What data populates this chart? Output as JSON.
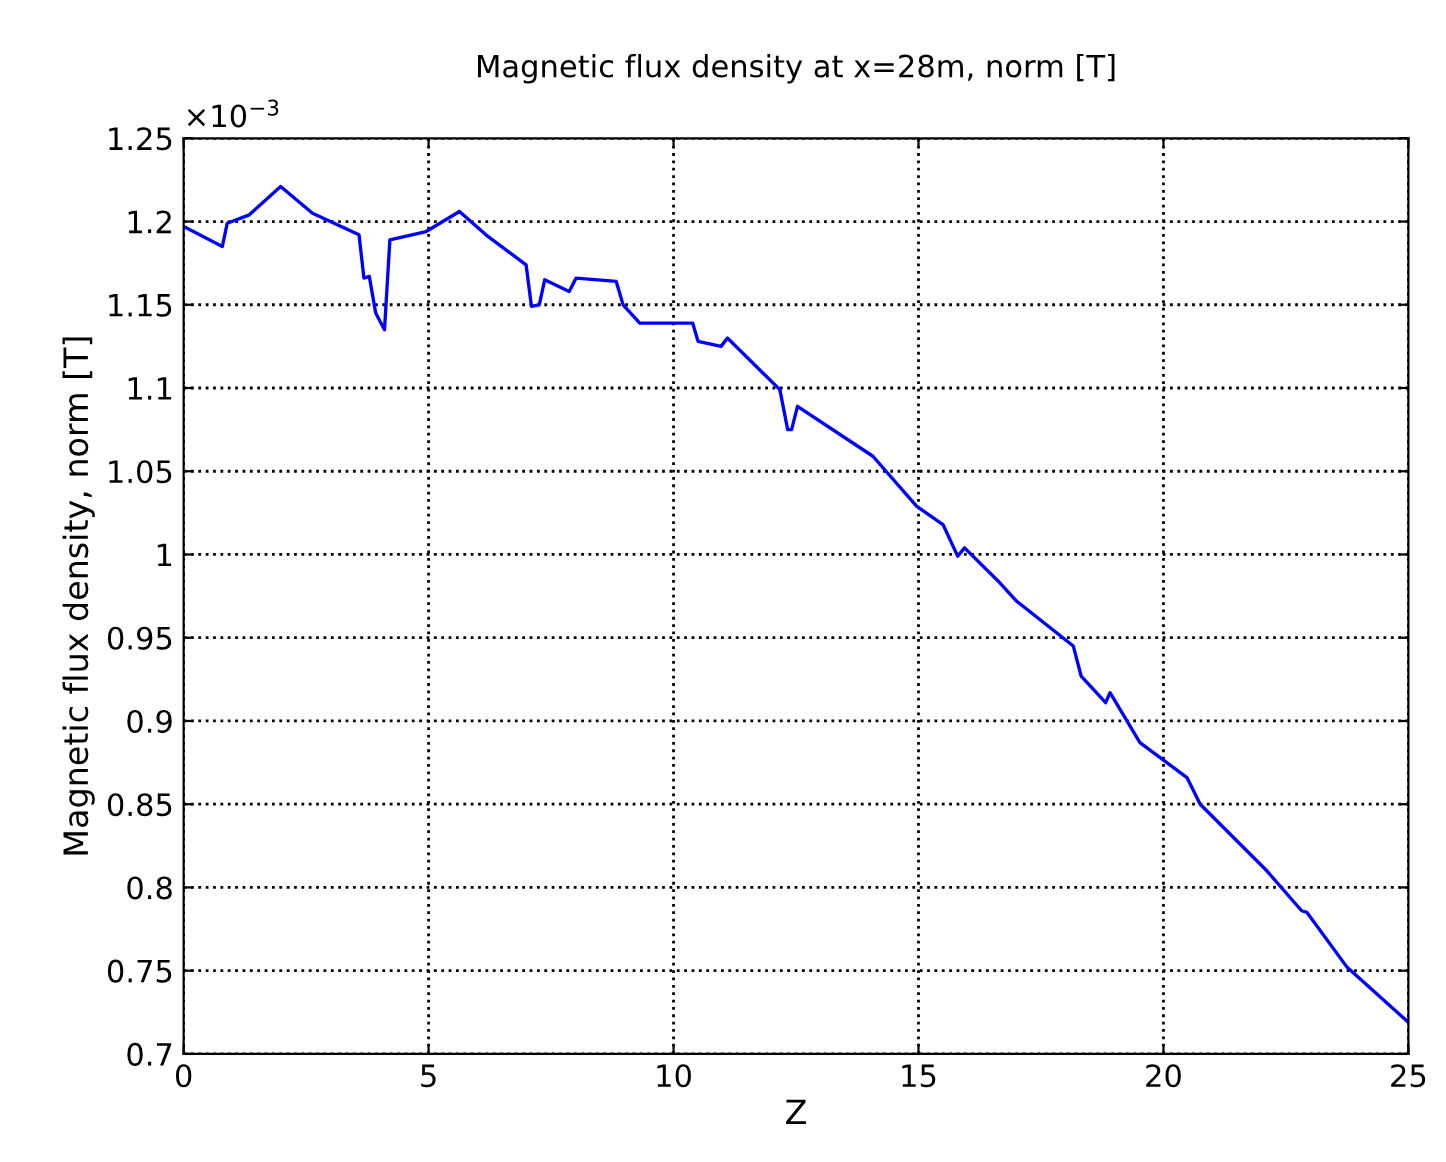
{
  "chart_data": {
    "type": "line",
    "title": "Magnetic flux density at x=28m, norm [T]",
    "xlabel": "Z",
    "ylabel": "Magnetic flux density, norm [T]",
    "annotations": [
      "×10$^{−3}$"
    ],
    "series": [
      {
        "color": "#0000ff",
        "x": [
          0,
          0.79,
          0.89,
          1.34,
          1.98,
          2.63,
          3.58,
          3.68,
          3.79,
          3.92,
          4.1,
          4.21,
          4.95,
          5.63,
          6.17,
          6.99,
          7.1,
          7.26,
          7.37,
          7.87,
          8.01,
          8.83,
          8.97,
          9.31,
          10.39,
          10.5,
          10.97,
          11.1,
          12.17,
          12.33,
          12.41,
          12.53,
          14.07,
          14.96,
          15.5,
          15.8,
          15.94,
          16.66,
          17.0,
          18.16,
          18.32,
          18.82,
          18.91,
          19.52,
          20.48,
          20.75,
          22.11,
          22.82,
          22.93,
          23.75,
          25
        ],
        "values": [
          1.197,
          1.185,
          1.199,
          1.204,
          1.221,
          1.205,
          1.192,
          1.166,
          1.167,
          1.145,
          1.135,
          1.189,
          1.194,
          1.206,
          1.192,
          1.174,
          1.149,
          1.15,
          1.165,
          1.158,
          1.166,
          1.164,
          1.15,
          1.139,
          1.139,
          1.128,
          1.125,
          1.13,
          1.099,
          1.075,
          1.075,
          1.089,
          1.059,
          1.029,
          1.018,
          0.999,
          1.004,
          0.983,
          0.972,
          0.945,
          0.927,
          0.911,
          0.917,
          0.887,
          0.866,
          0.85,
          0.81,
          0.786,
          0.785,
          0.752,
          0.719
        ]
      }
    ],
    "xlim": [
      0,
      25
    ],
    "xticks": [
      0,
      5,
      10,
      15,
      20,
      25
    ],
    "ylim": [
      0.7,
      1.25
    ],
    "yticks": [
      0.7,
      0.75,
      0.8,
      0.85,
      0.9,
      0.95,
      1,
      1.05,
      1.1,
      1.15,
      1.2,
      1.25
    ],
    "grid": true,
    "line_style": "solid",
    "marker": "none"
  }
}
